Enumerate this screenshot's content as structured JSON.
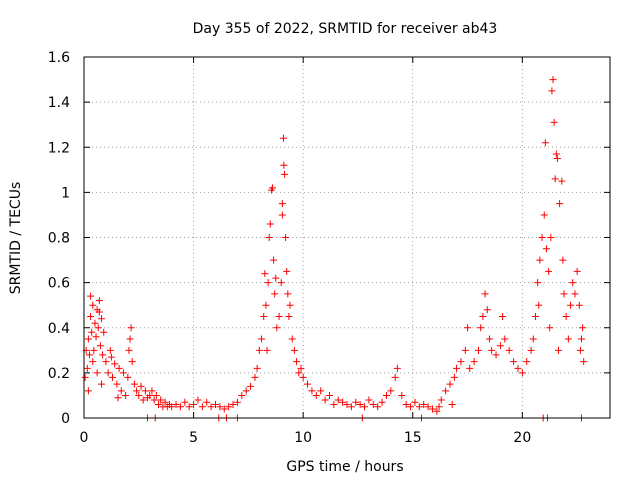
{
  "chart_data": {
    "type": "scatter",
    "title": "Day 355 of 2022, SRMTID for receiver ab43",
    "xlabel": "GPS time / hours",
    "ylabel": "SRMTID / TECUs",
    "xlim": [
      0,
      24
    ],
    "ylim": [
      0,
      1.6
    ],
    "x_ticks": [
      0,
      5,
      10,
      15,
      20
    ],
    "x_tick_labels": [
      "0",
      "5",
      "10",
      "15",
      "20"
    ],
    "y_ticks": [
      0,
      0.2,
      0.4,
      0.6,
      0.8,
      1.0,
      1.2,
      1.4,
      1.6
    ],
    "y_tick_labels": [
      "0",
      "0.2",
      "0.4",
      "0.6",
      "0.8",
      "1",
      "1.2",
      "1.4",
      "1.6"
    ],
    "grid": true,
    "marker": "+",
    "color": "#ff0000",
    "series": [
      {
        "name": "SRMTID",
        "points": [
          [
            0.05,
            0.18
          ],
          [
            0.1,
            0.3
          ],
          [
            0.15,
            0.22
          ],
          [
            0.2,
            0.35
          ],
          [
            0.25,
            0.28
          ],
          [
            0.3,
            0.45
          ],
          [
            0.35,
            0.38
          ],
          [
            0.4,
            0.5
          ],
          [
            0.45,
            0.3
          ],
          [
            0.5,
            0.42
          ],
          [
            0.55,
            0.36
          ],
          [
            0.6,
            0.48
          ],
          [
            0.65,
            0.4
          ],
          [
            0.7,
            0.52
          ],
          [
            0.75,
            0.32
          ],
          [
            0.8,
            0.44
          ],
          [
            0.85,
            0.28
          ],
          [
            0.9,
            0.38
          ],
          [
            0.2,
            0.12
          ],
          [
            0.4,
            0.25
          ],
          [
            0.6,
            0.2
          ],
          [
            0.8,
            0.15
          ],
          [
            0.3,
            0.54
          ],
          [
            0.7,
            0.47
          ],
          [
            1.0,
            0.25
          ],
          [
            1.1,
            0.2
          ],
          [
            1.2,
            0.3
          ],
          [
            1.3,
            0.18
          ],
          [
            1.4,
            0.24
          ],
          [
            1.5,
            0.15
          ],
          [
            1.6,
            0.22
          ],
          [
            1.7,
            0.12
          ],
          [
            1.8,
            0.2
          ],
          [
            1.9,
            0.1
          ],
          [
            2.0,
            0.18
          ],
          [
            2.1,
            0.35
          ],
          [
            2.15,
            0.4
          ],
          [
            2.2,
            0.25
          ],
          [
            2.3,
            0.15
          ],
          [
            2.4,
            0.12
          ],
          [
            2.5,
            0.1
          ],
          [
            2.6,
            0.14
          ],
          [
            2.7,
            0.08
          ],
          [
            2.8,
            0.12
          ],
          [
            2.9,
            0.09
          ],
          [
            3.0,
            0.1
          ],
          [
            1.25,
            0.27
          ],
          [
            1.55,
            0.09
          ],
          [
            2.05,
            0.3
          ],
          [
            3.1,
            0.12
          ],
          [
            3.2,
            0.08
          ],
          [
            3.3,
            0.1
          ],
          [
            3.4,
            0.06
          ],
          [
            3.5,
            0.08
          ],
          [
            3.6,
            0.05
          ],
          [
            3.7,
            0.07
          ],
          [
            3.8,
            0.05
          ],
          [
            3.9,
            0.06
          ],
          [
            4.0,
            0.05
          ],
          [
            4.2,
            0.06
          ],
          [
            4.4,
            0.05
          ],
          [
            4.6,
            0.07
          ],
          [
            4.8,
            0.05
          ],
          [
            5.0,
            0.06
          ],
          [
            5.2,
            0.08
          ],
          [
            5.4,
            0.05
          ],
          [
            5.6,
            0.07
          ],
          [
            5.8,
            0.05
          ],
          [
            6.0,
            0.06
          ],
          [
            6.2,
            0.05
          ],
          [
            6.4,
            0.04
          ],
          [
            6.6,
            0.05
          ],
          [
            6.8,
            0.06
          ],
          [
            7.0,
            0.07
          ],
          [
            2.9,
            0.0
          ],
          [
            3.25,
            0.0
          ],
          [
            6.15,
            0.0
          ],
          [
            6.5,
            0.0
          ],
          [
            7.0,
            0.0
          ],
          [
            7.2,
            0.1
          ],
          [
            7.4,
            0.12
          ],
          [
            7.6,
            0.14
          ],
          [
            7.8,
            0.18
          ],
          [
            7.9,
            0.22
          ],
          [
            8.0,
            0.3
          ],
          [
            8.1,
            0.35
          ],
          [
            8.2,
            0.45
          ],
          [
            8.25,
            0.64
          ],
          [
            8.3,
            0.5
          ],
          [
            8.4,
            0.6
          ],
          [
            8.45,
            0.8
          ],
          [
            8.5,
            0.86
          ],
          [
            8.55,
            1.01
          ],
          [
            8.6,
            1.02
          ],
          [
            8.65,
            0.7
          ],
          [
            8.7,
            0.55
          ],
          [
            8.8,
            0.4
          ],
          [
            8.9,
            0.45
          ],
          [
            9.0,
            0.6
          ],
          [
            9.05,
            0.9
          ],
          [
            9.1,
            1.24
          ],
          [
            9.12,
            1.12
          ],
          [
            9.15,
            1.08
          ],
          [
            9.2,
            0.8
          ],
          [
            9.25,
            0.65
          ],
          [
            9.3,
            0.55
          ],
          [
            9.4,
            0.5
          ],
          [
            9.5,
            0.35
          ],
          [
            9.6,
            0.3
          ],
          [
            9.7,
            0.25
          ],
          [
            9.8,
            0.2
          ],
          [
            9.9,
            0.22
          ],
          [
            10.0,
            0.18
          ],
          [
            8.35,
            0.3
          ],
          [
            8.75,
            0.62
          ],
          [
            9.35,
            0.45
          ],
          [
            9.05,
            0.95
          ],
          [
            10.2,
            0.15
          ],
          [
            10.4,
            0.12
          ],
          [
            10.6,
            0.1
          ],
          [
            10.8,
            0.12
          ],
          [
            11.0,
            0.08
          ],
          [
            11.2,
            0.1
          ],
          [
            11.4,
            0.06
          ],
          [
            11.6,
            0.08
          ],
          [
            11.8,
            0.07
          ],
          [
            12.0,
            0.06
          ],
          [
            12.2,
            0.05
          ],
          [
            12.4,
            0.07
          ],
          [
            12.6,
            0.06
          ],
          [
            12.8,
            0.05
          ],
          [
            13.0,
            0.08
          ],
          [
            13.2,
            0.06
          ],
          [
            13.4,
            0.05
          ],
          [
            13.6,
            0.07
          ],
          [
            13.8,
            0.1
          ],
          [
            14.0,
            0.12
          ],
          [
            14.2,
            0.18
          ],
          [
            14.3,
            0.22
          ],
          [
            14.5,
            0.1
          ],
          [
            14.7,
            0.06
          ],
          [
            14.9,
            0.05
          ],
          [
            15.1,
            0.07
          ],
          [
            15.3,
            0.05
          ],
          [
            15.5,
            0.06
          ],
          [
            15.7,
            0.05
          ],
          [
            15.9,
            0.04
          ],
          [
            16.1,
            0.03
          ],
          [
            16.2,
            0.05
          ],
          [
            12.7,
            0.0
          ],
          [
            15.4,
            0.0
          ],
          [
            16.3,
            0.08
          ],
          [
            16.5,
            0.12
          ],
          [
            16.7,
            0.15
          ],
          [
            16.9,
            0.18
          ],
          [
            17.0,
            0.22
          ],
          [
            17.2,
            0.25
          ],
          [
            17.4,
            0.3
          ],
          [
            17.6,
            0.22
          ],
          [
            17.8,
            0.25
          ],
          [
            18.0,
            0.3
          ],
          [
            18.2,
            0.45
          ],
          [
            18.3,
            0.55
          ],
          [
            18.4,
            0.48
          ],
          [
            18.5,
            0.35
          ],
          [
            18.6,
            0.3
          ],
          [
            18.8,
            0.28
          ],
          [
            19.0,
            0.32
          ],
          [
            19.2,
            0.35
          ],
          [
            19.4,
            0.3
          ],
          [
            19.6,
            0.25
          ],
          [
            19.8,
            0.22
          ],
          [
            20.0,
            0.2
          ],
          [
            20.2,
            0.25
          ],
          [
            20.4,
            0.3
          ],
          [
            17.5,
            0.4
          ],
          [
            16.8,
            0.06
          ],
          [
            18.1,
            0.4
          ],
          [
            19.1,
            0.45
          ],
          [
            20.5,
            0.35
          ],
          [
            20.6,
            0.45
          ],
          [
            20.7,
            0.6
          ],
          [
            20.8,
            0.7
          ],
          [
            20.9,
            0.8
          ],
          [
            21.0,
            0.9
          ],
          [
            21.05,
            1.22
          ],
          [
            21.1,
            0.75
          ],
          [
            21.2,
            0.65
          ],
          [
            21.3,
            0.8
          ],
          [
            21.35,
            1.45
          ],
          [
            21.4,
            1.5
          ],
          [
            21.45,
            1.31
          ],
          [
            21.5,
            1.06
          ],
          [
            21.55,
            1.17
          ],
          [
            21.6,
            1.15
          ],
          [
            21.7,
            0.95
          ],
          [
            21.8,
            1.05
          ],
          [
            21.85,
            0.7
          ],
          [
            21.9,
            0.55
          ],
          [
            22.0,
            0.45
          ],
          [
            22.1,
            0.35
          ],
          [
            22.2,
            0.5
          ],
          [
            22.3,
            0.6
          ],
          [
            22.4,
            0.55
          ],
          [
            22.5,
            0.65
          ],
          [
            22.6,
            0.5
          ],
          [
            22.65,
            0.3
          ],
          [
            22.7,
            0.35
          ],
          [
            22.75,
            0.4
          ],
          [
            22.8,
            0.25
          ],
          [
            20.95,
            0.0
          ],
          [
            21.15,
            0.0
          ],
          [
            22.7,
            0.0
          ],
          [
            20.75,
            0.5
          ],
          [
            21.25,
            0.4
          ],
          [
            21.65,
            0.3
          ]
        ]
      }
    ]
  }
}
